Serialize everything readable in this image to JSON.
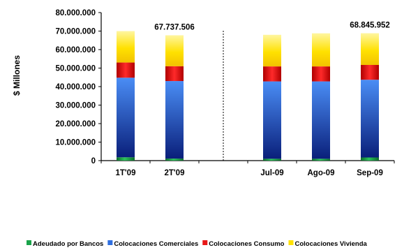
{
  "chart_data": {
    "type": "bar",
    "stacked": true,
    "ylabel": "$ Millones",
    "ylim": [
      0,
      80000000
    ],
    "yticks": [
      "0",
      "10.000.000",
      "20.000.000",
      "30.000.000",
      "40.000.000",
      "50.000.000",
      "60.000.000",
      "70.000.000",
      "80.000.000"
    ],
    "categories": [
      "1T'09",
      "2T'09",
      "",
      "Jul-09",
      "Ago-09",
      "Sep-09"
    ],
    "series": [
      {
        "name": "Adeudado por Bancos",
        "color": "#1aa34a",
        "values": [
          1800000,
          1100000,
          null,
          1000000,
          1000000,
          1700000
        ]
      },
      {
        "name": "Colocaciones Comerciales",
        "color": "#2f6fe0",
        "values": [
          43000000,
          41900000,
          null,
          41800000,
          41800000,
          42000000
        ]
      },
      {
        "name": "Colocaciones Consumo",
        "color": "#e81818",
        "values": [
          8200000,
          8000000,
          null,
          8100000,
          8100000,
          8000000
        ]
      },
      {
        "name": "Colocaciones Vivienda",
        "color": "#ffe100",
        "values": [
          17000000,
          16737506,
          null,
          17100000,
          17900000,
          17145952
        ]
      }
    ],
    "data_labels": [
      {
        "category_index": 1,
        "text": "67.737.506"
      },
      {
        "category_index": 5,
        "text": "68.845.952"
      }
    ],
    "divider_after_index": 2,
    "legend_position": "bottom",
    "grid": false
  }
}
